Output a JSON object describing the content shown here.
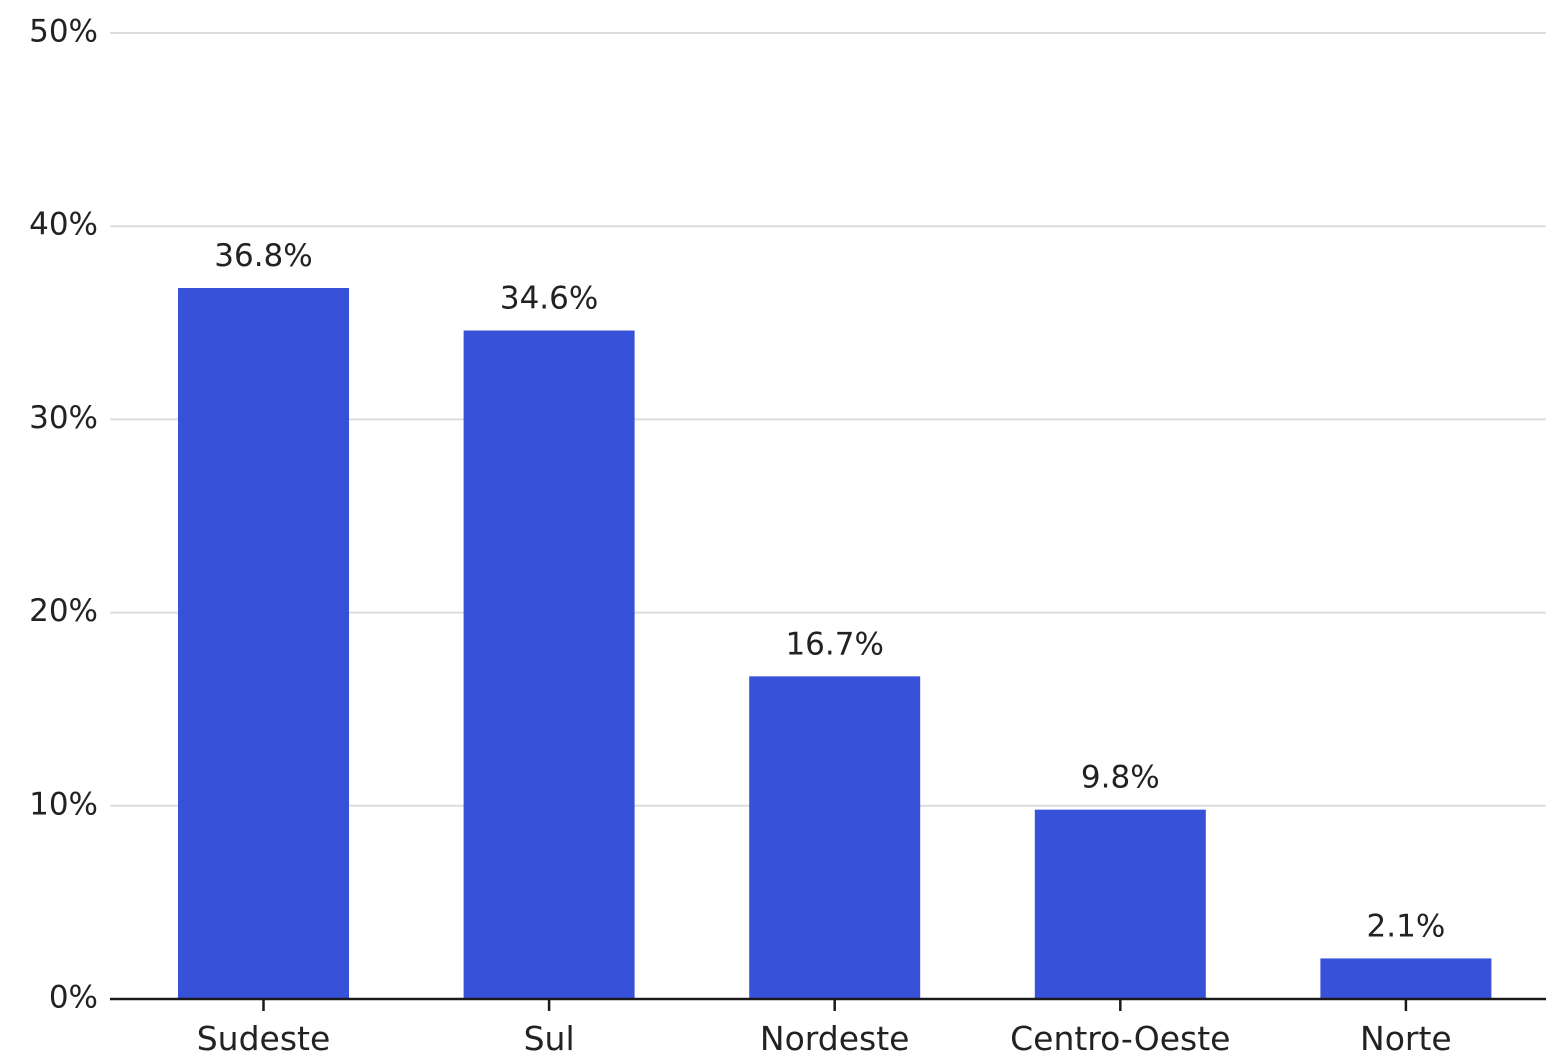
{
  "chart_data": {
    "type": "bar",
    "title": "",
    "xlabel": "",
    "ylabel": "",
    "categories": [
      "Sudeste",
      "Sul",
      "Nordeste",
      "Centro-Oeste",
      "Norte"
    ],
    "values": [
      36.8,
      34.6,
      16.7,
      9.8,
      2.1
    ],
    "data_labels": [
      "36.8%",
      "34.6%",
      "16.7%",
      "9.8%",
      "2.1%"
    ],
    "ylim": [
      0,
      50
    ],
    "yticks": [
      0,
      10,
      20,
      30,
      40,
      50
    ],
    "ytick_labels": [
      "0%",
      "10%",
      "20%",
      "30%",
      "40%",
      "50%"
    ],
    "grid": true,
    "legend": "none",
    "bar_color": "#3751d9"
  }
}
